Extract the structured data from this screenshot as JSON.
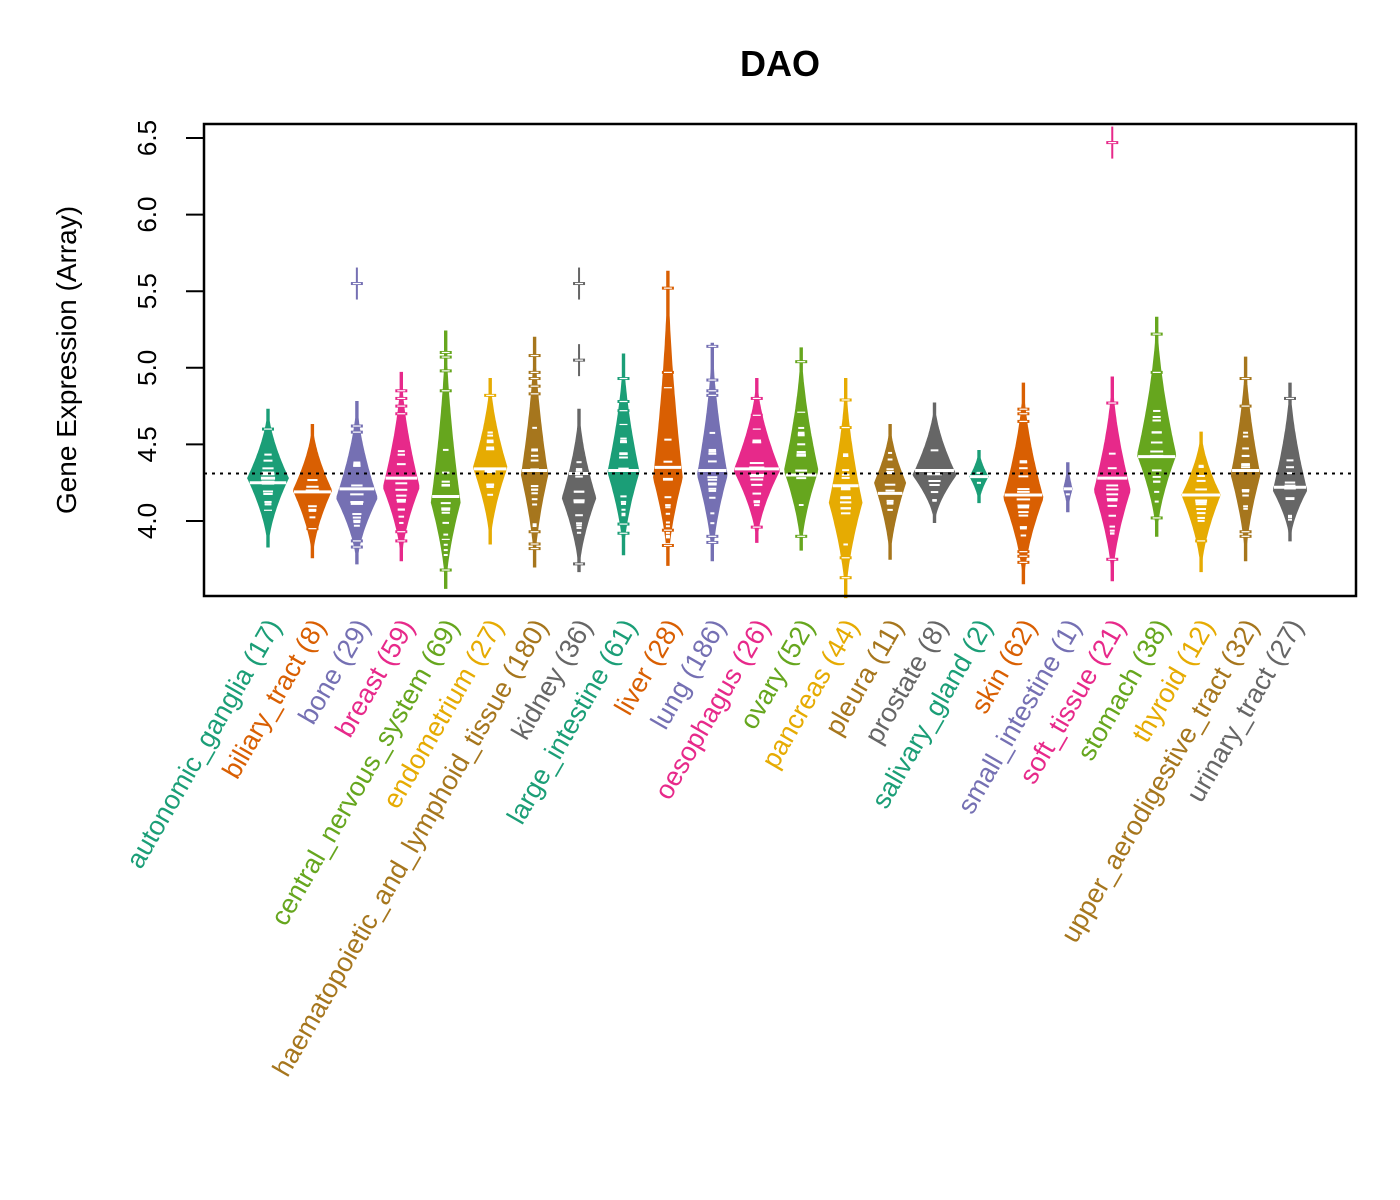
{
  "chart_data": {
    "type": "violin",
    "title": "DAO",
    "xlabel": "",
    "ylabel": "Gene Expression (Array)",
    "ylim": [
      3.5,
      6.55
    ],
    "yticks": [
      4.0,
      4.5,
      5.0,
      5.5,
      6.0,
      6.5
    ],
    "ytick_labels": [
      "4.0",
      "4.5",
      "5.0",
      "5.5",
      "6.0",
      "6.5"
    ],
    "reference_line": 4.31,
    "grid": false,
    "legend": "none",
    "categories": [
      {
        "name": "autonomic_ganglia",
        "n": 17,
        "color": "#1B9E77",
        "min": 3.83,
        "max": 4.73,
        "median": 4.25,
        "mode": 4.28,
        "width": 0.85,
        "outliers": [
          4.6,
          4.07
        ]
      },
      {
        "name": "biliary_tract",
        "n": 8,
        "color": "#D95F02",
        "min": 3.76,
        "max": 4.63,
        "median": 4.19,
        "mode": 4.2,
        "width": 0.8,
        "outliers": [
          3.95
        ]
      },
      {
        "name": "bone",
        "n": 29,
        "color": "#7570B3",
        "min": 3.72,
        "max": 4.78,
        "median": 4.21,
        "mode": 4.15,
        "width": 0.85,
        "outliers": [
          5.55,
          4.62,
          4.58,
          3.87,
          3.83
        ]
      },
      {
        "name": "breast",
        "n": 59,
        "color": "#E7298A",
        "min": 3.74,
        "max": 4.97,
        "median": 4.28,
        "mode": 4.22,
        "width": 0.75,
        "outliers": [
          4.85,
          4.8,
          4.75,
          4.7,
          3.93,
          3.87
        ]
      },
      {
        "name": "central_nervous_system",
        "n": 69,
        "color": "#66A61E",
        "min": 3.56,
        "max": 5.24,
        "median": 4.16,
        "mode": 4.12,
        "width": 0.6,
        "outliers": [
          5.1,
          5.07,
          4.98,
          4.85,
          3.88,
          3.68
        ]
      },
      {
        "name": "endometrium",
        "n": 27,
        "color": "#E6AB02",
        "min": 3.85,
        "max": 4.93,
        "median": 4.34,
        "mode": 4.35,
        "width": 0.7,
        "outliers": [
          4.82
        ]
      },
      {
        "name": "haematopoietic_and_lymphoid_tissue",
        "n": 180,
        "color": "#A6761D",
        "min": 3.7,
        "max": 5.2,
        "median": 4.33,
        "mode": 4.3,
        "width": 0.55,
        "outliers": [
          5.08,
          4.97,
          4.93,
          4.88,
          4.83,
          3.93,
          3.85,
          3.82
        ]
      },
      {
        "name": "kidney",
        "n": 36,
        "color": "#666666",
        "min": 3.67,
        "max": 4.73,
        "median": 4.31,
        "mode": 4.15,
        "width": 0.7,
        "outliers": [
          5.55,
          5.05,
          3.72
        ]
      },
      {
        "name": "large_intestine",
        "n": 61,
        "color": "#1B9E77",
        "min": 3.78,
        "max": 5.09,
        "median": 4.33,
        "mode": 4.32,
        "width": 0.65,
        "outliers": [
          4.93,
          4.78,
          4.72,
          4.63,
          3.98,
          3.92
        ]
      },
      {
        "name": "liver",
        "n": 28,
        "color": "#D95F02",
        "min": 3.71,
        "max": 5.63,
        "median": 4.35,
        "mode": 4.28,
        "width": 0.6,
        "outliers": [
          5.52,
          4.97,
          4.87,
          3.94,
          3.84
        ]
      },
      {
        "name": "lung",
        "n": 186,
        "color": "#7570B3",
        "min": 3.74,
        "max": 5.16,
        "median": 4.33,
        "mode": 4.3,
        "width": 0.62,
        "outliers": [
          5.14,
          4.92,
          4.85,
          4.82,
          3.9,
          3.86
        ]
      },
      {
        "name": "oesophagus",
        "n": 26,
        "color": "#E7298A",
        "min": 3.86,
        "max": 4.93,
        "median": 4.34,
        "mode": 4.33,
        "width": 0.95,
        "outliers": [
          4.8,
          4.69,
          4.6,
          3.96
        ]
      },
      {
        "name": "ovary",
        "n": 52,
        "color": "#66A61E",
        "min": 3.81,
        "max": 5.13,
        "median": 4.3,
        "mode": 4.33,
        "width": 0.7,
        "outliers": [
          5.04,
          4.71,
          3.9
        ]
      },
      {
        "name": "pancreas",
        "n": 44,
        "color": "#E6AB02",
        "min": 3.5,
        "max": 4.93,
        "median": 4.23,
        "mode": 4.12,
        "width": 0.68,
        "outliers": [
          4.79,
          4.61,
          3.76,
          3.63
        ]
      },
      {
        "name": "pleura",
        "n": 11,
        "color": "#A6761D",
        "min": 3.75,
        "max": 4.63,
        "median": 4.18,
        "mode": 4.25,
        "width": 0.65,
        "outliers": []
      },
      {
        "name": "prostate",
        "n": 8,
        "color": "#666666",
        "min": 3.99,
        "max": 4.77,
        "median": 4.33,
        "mode": 4.3,
        "width": 0.9,
        "outliers": []
      },
      {
        "name": "salivary_gland",
        "n": 2,
        "color": "#1B9E77",
        "min": 4.12,
        "max": 4.46,
        "median": 4.29,
        "mode": 4.29,
        "width": 0.38,
        "outliers": []
      },
      {
        "name": "skin",
        "n": 62,
        "color": "#D95F02",
        "min": 3.59,
        "max": 4.9,
        "median": 4.17,
        "mode": 4.15,
        "width": 0.82,
        "outliers": [
          4.73,
          4.7,
          4.65,
          3.8,
          3.77,
          3.73
        ]
      },
      {
        "name": "small_intestine",
        "n": 1,
        "color": "#7570B3",
        "min": 4.06,
        "max": 4.38,
        "median": 4.21,
        "mode": 4.21,
        "width": 0.18,
        "outliers": []
      },
      {
        "name": "soft_tissue",
        "n": 21,
        "color": "#E7298A",
        "min": 3.61,
        "max": 4.94,
        "median": 4.28,
        "mode": 4.2,
        "width": 0.75,
        "outliers": [
          6.47,
          4.77,
          3.75
        ]
      },
      {
        "name": "stomach",
        "n": 38,
        "color": "#66A61E",
        "min": 3.9,
        "max": 5.33,
        "median": 4.42,
        "mode": 4.43,
        "width": 0.8,
        "outliers": [
          5.22,
          4.97,
          4.02
        ]
      },
      {
        "name": "thyroid",
        "n": 12,
        "color": "#E6AB02",
        "min": 3.67,
        "max": 4.58,
        "median": 4.17,
        "mode": 4.17,
        "width": 0.8,
        "outliers": [
          3.87
        ]
      },
      {
        "name": "upper_aerodigestive_tract",
        "n": 32,
        "color": "#A6761D",
        "min": 3.74,
        "max": 5.07,
        "median": 4.33,
        "mode": 4.3,
        "width": 0.6,
        "outliers": [
          4.93,
          4.75,
          3.93,
          3.9
        ]
      },
      {
        "name": "urinary_tract",
        "n": 27,
        "color": "#666666",
        "min": 3.87,
        "max": 4.9,
        "median": 4.22,
        "mode": 4.2,
        "width": 0.7,
        "outliers": [
          4.8
        ]
      }
    ]
  }
}
